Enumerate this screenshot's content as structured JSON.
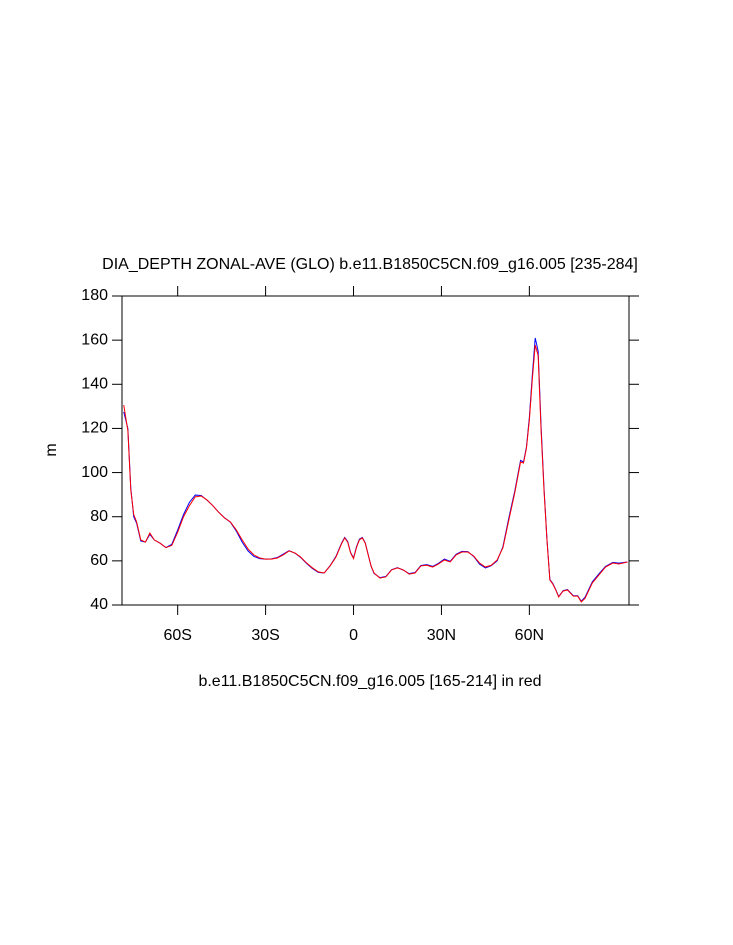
{
  "chart_data": {
    "type": "line",
    "title": "DIA_DEPTH ZONAL-AVE (GLO) b.e11.B1850C5CN.f09_g16.005 [235-284]",
    "x_label": "b.e11.B1850C5CN.f09_g16.005 [165-214] in red",
    "y_label": "m",
    "x": [
      -78.4,
      -77,
      -76,
      -75,
      -74,
      -72.6,
      -71,
      -69.5,
      -68,
      -66,
      -64,
      -62,
      -60,
      -58,
      -56,
      -54,
      -52,
      -50,
      -48,
      -46,
      -44,
      -42,
      -40,
      -38,
      -36,
      -34,
      -32,
      -30,
      -28,
      -26,
      -24,
      -22,
      -20,
      -18,
      -16,
      -14,
      -12,
      -10,
      -8,
      -6,
      -4,
      -3,
      -2,
      -1,
      0,
      1,
      2,
      3,
      4,
      5,
      6,
      7,
      9,
      11,
      13,
      15,
      17,
      19,
      21,
      23,
      25,
      27,
      29,
      31,
      33,
      35,
      37,
      39,
      41,
      43,
      45,
      47,
      49,
      51,
      53,
      55,
      57,
      58,
      59,
      60,
      61,
      62,
      63,
      64,
      65,
      66,
      67,
      68,
      69,
      70,
      71.5,
      73,
      75,
      76.5,
      77.7,
      79,
      81.5,
      84,
      86,
      88.5,
      90.5,
      93.5
    ],
    "series": [
      {
        "color": "#0000ff",
        "values": [
          127.5,
          120,
          93,
          80,
          77,
          69,
          68.5,
          72,
          69.5,
          68,
          66,
          67.5,
          74,
          81,
          86.5,
          89.8,
          89.6,
          87.5,
          85,
          82,
          79.5,
          77.5,
          73.5,
          68.5,
          64.5,
          62,
          61,
          60.8,
          60.9,
          61.5,
          63,
          64.6,
          63.5,
          61.5,
          58.8,
          56.5,
          54.8,
          54.5,
          57.8,
          62,
          68.3,
          70.6,
          68.8,
          63.8,
          61.3,
          66.3,
          69.8,
          70.6,
          68.2,
          62.9,
          57.5,
          54.3,
          52.4,
          52.9,
          56,
          56.9,
          55.8,
          54.2,
          54.7,
          57.9,
          58.3,
          57.5,
          58.9,
          60.8,
          59.8,
          63,
          64.3,
          64.2,
          62,
          58.5,
          56.8,
          57.8,
          60,
          66.5,
          79.5,
          91.5,
          105.5,
          104.8,
          111.5,
          125,
          144,
          161,
          155,
          121,
          93,
          70,
          51.5,
          49.8,
          47,
          43.8,
          46.5,
          47,
          44.2,
          44.2,
          41.7,
          43.5,
          50.5,
          54.5,
          57.5,
          59.3,
          59,
          59.5
        ]
      },
      {
        "color": "#ff0000",
        "values": [
          130.6,
          119,
          92,
          81,
          77.6,
          69.5,
          68.5,
          72.6,
          69.5,
          68,
          66,
          67,
          73,
          80,
          85,
          89,
          89.4,
          87.6,
          85,
          82,
          79.4,
          77.6,
          74,
          69.5,
          65.4,
          62.7,
          61.3,
          60.8,
          60.8,
          61.3,
          62.7,
          64.5,
          63.6,
          61.7,
          59,
          56.8,
          55,
          54.5,
          57.7,
          61.7,
          68,
          70.4,
          68.5,
          63.6,
          61,
          66,
          69.5,
          70.4,
          68,
          62.7,
          57.7,
          54.5,
          52.2,
          52.7,
          55.9,
          56.8,
          55.9,
          54,
          54.5,
          57.7,
          58,
          57.2,
          58.6,
          60.4,
          59.5,
          62.7,
          64,
          64,
          62.2,
          59,
          57.2,
          58,
          60.4,
          66,
          78.5,
          90.7,
          104.8,
          104.3,
          111,
          123.8,
          142,
          157.8,
          153,
          119,
          92,
          69.5,
          51.3,
          49.5,
          46.8,
          43.6,
          46.3,
          46.8,
          44,
          44,
          41.4,
          43,
          50,
          54,
          57.2,
          59,
          58.6,
          59.5
        ]
      }
    ],
    "xlim": [
      -79,
      94
    ],
    "xticks": [
      {
        "value": -60,
        "label": "60S"
      },
      {
        "value": -30,
        "label": "30S"
      },
      0,
      {
        "value": 30,
        "label": "30N"
      },
      {
        "value": 60,
        "label": "60N"
      }
    ],
    "ylim": [
      40,
      180
    ],
    "yticks": [
      40,
      60,
      80,
      100,
      120,
      140,
      160,
      180
    ]
  }
}
